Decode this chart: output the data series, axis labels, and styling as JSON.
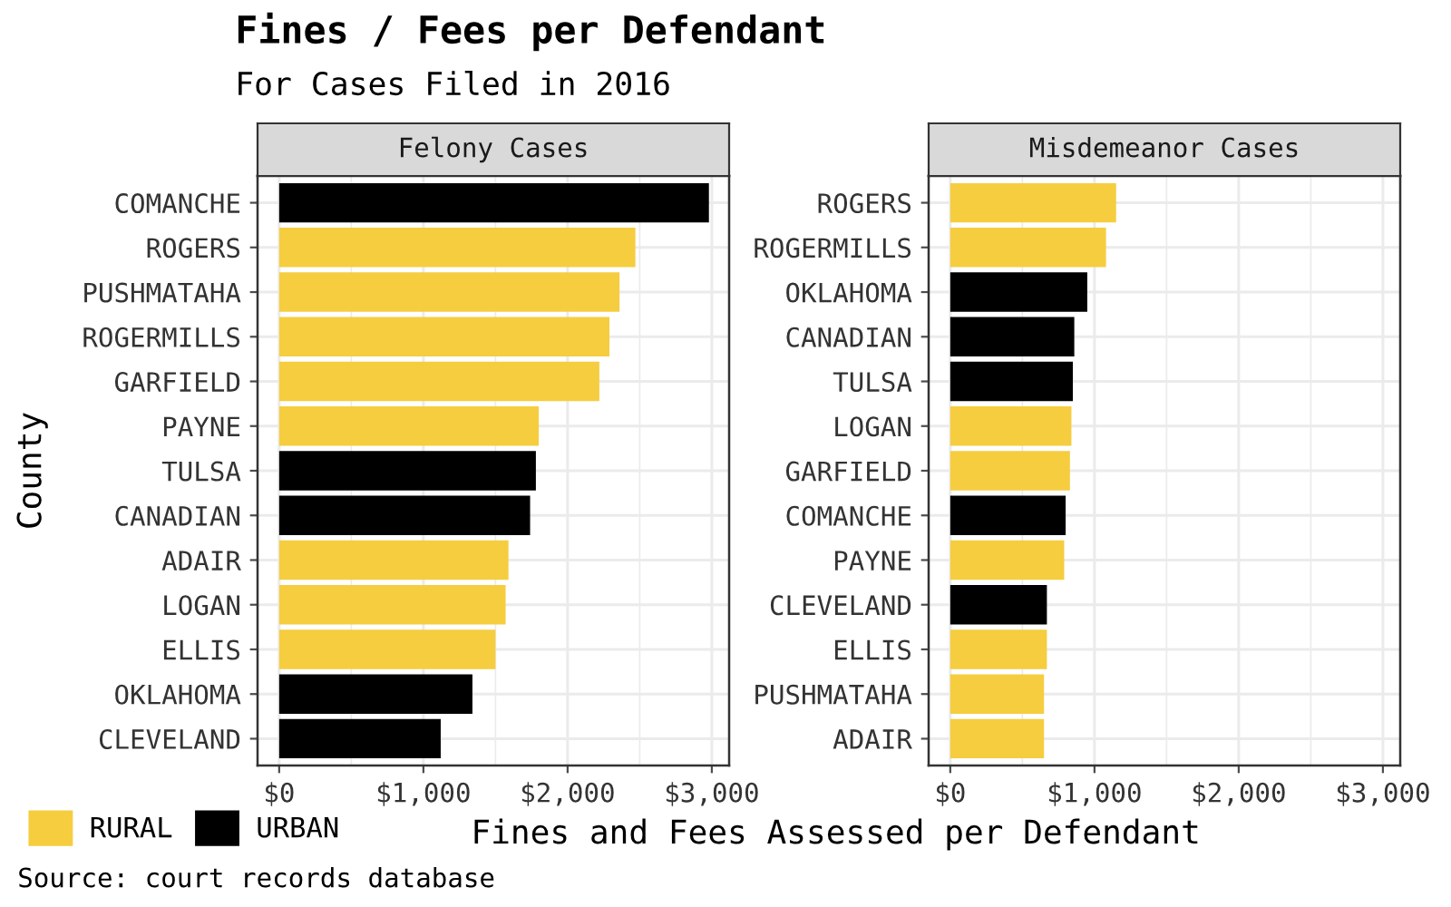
{
  "chart_data": [
    {
      "type": "bar",
      "orientation": "horizontal",
      "title": "Felony Cases",
      "ylabel": "County",
      "xlabel": "Fines and Fees Assessed per Defendant",
      "annotations": [
        "Fines / Fees per Defendant",
        "For Cases Filed in 2016",
        "Source: court records database"
      ],
      "categories": [
        "COMANCHE",
        "ROGERS",
        "PUSHMATAHA",
        "ROGERMILLS",
        "GARFIELD",
        "PAYNE",
        "TULSA",
        "CANADIAN",
        "ADAIR",
        "LOGAN",
        "ELLIS",
        "OKLAHOMA",
        "CLEVELAND"
      ],
      "series": [
        {
          "name": "RURAL",
          "color": "#f5cd3f",
          "values": [
            null,
            2470,
            2360,
            2290,
            2220,
            1800,
            null,
            null,
            1590,
            1570,
            1500,
            null,
            null
          ]
        },
        {
          "name": "URBAN",
          "color": "#000000",
          "values": [
            2980,
            null,
            null,
            null,
            null,
            null,
            1780,
            1740,
            null,
            null,
            null,
            1340,
            1120
          ]
        }
      ],
      "xlim": [
        -150,
        3120
      ],
      "xticks": [
        {
          "value": 0,
          "label": "$0"
        },
        {
          "value": 1000,
          "label": "$1,000"
        },
        {
          "value": 2000,
          "label": "$2,000"
        },
        {
          "value": 3000,
          "label": "$3,000"
        }
      ],
      "grid": true,
      "legend": "bottom left"
    },
    {
      "type": "bar",
      "orientation": "horizontal",
      "title": "Misdemeanor Cases",
      "categories": [
        "ROGERS",
        "ROGERMILLS",
        "OKLAHOMA",
        "CANADIAN",
        "TULSA",
        "LOGAN",
        "GARFIELD",
        "COMANCHE",
        "PAYNE",
        "CLEVELAND",
        "ELLIS",
        "PUSHMATAHA",
        "ADAIR"
      ],
      "series": [
        {
          "name": "RURAL",
          "color": "#f5cd3f",
          "values": [
            1150,
            1080,
            null,
            null,
            null,
            840,
            830,
            null,
            790,
            null,
            670,
            650,
            650
          ]
        },
        {
          "name": "URBAN",
          "color": "#000000",
          "values": [
            null,
            null,
            950,
            860,
            850,
            null,
            null,
            800,
            null,
            670,
            null,
            null,
            null
          ]
        }
      ],
      "xlim": [
        -150,
        3120
      ],
      "xticks": [
        {
          "value": 0,
          "label": "$0"
        },
        {
          "value": 1000,
          "label": "$1,000"
        },
        {
          "value": 2000,
          "label": "$2,000"
        },
        {
          "value": 3000,
          "label": "$3,000"
        }
      ],
      "grid": true
    }
  ]
}
